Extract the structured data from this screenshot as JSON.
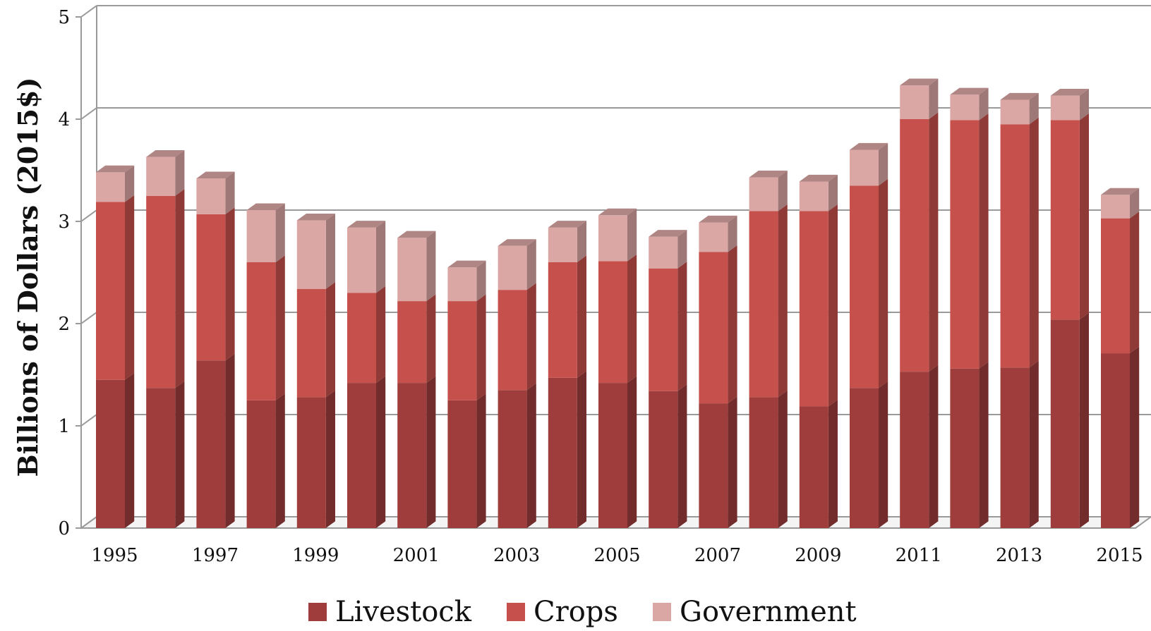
{
  "chart_data": {
    "type": "bar",
    "stacked": true,
    "three_d": true,
    "title": "",
    "xlabel": "",
    "ylabel": "Billions of Dollars (2015$)",
    "ylim": [
      0,
      5
    ],
    "yticks": [
      0,
      1,
      2,
      3,
      4,
      5
    ],
    "grid": true,
    "legend_position": "bottom",
    "categories": [
      "1995",
      "1996",
      "1997",
      "1998",
      "1999",
      "2000",
      "2001",
      "2002",
      "2003",
      "2004",
      "2005",
      "2006",
      "2007",
      "2008",
      "2009",
      "2010",
      "2011",
      "2012",
      "2013",
      "2014",
      "2015"
    ],
    "xtick_labels": [
      "1995",
      "",
      "1997",
      "",
      "1999",
      "",
      "2001",
      "",
      "2003",
      "",
      "2005",
      "",
      "2007",
      "",
      "2009",
      "",
      "2011",
      "",
      "2013",
      "",
      "2015"
    ],
    "series": [
      {
        "name": "Livestock",
        "color": "#9e3d3c",
        "values": [
          1.45,
          1.37,
          1.64,
          1.25,
          1.28,
          1.42,
          1.42,
          1.25,
          1.35,
          1.47,
          1.42,
          1.34,
          1.22,
          1.28,
          1.19,
          1.37,
          1.53,
          1.56,
          1.57,
          2.04,
          1.71
        ]
      },
      {
        "name": "Crops",
        "color": "#c6504c",
        "values": [
          1.74,
          1.88,
          1.43,
          1.35,
          1.06,
          0.88,
          0.8,
          0.97,
          0.98,
          1.13,
          1.19,
          1.2,
          1.48,
          1.82,
          1.91,
          1.98,
          2.47,
          2.43,
          2.38,
          1.95,
          1.32
        ]
      },
      {
        "name": "Government",
        "color": "#dba7a5",
        "values": [
          0.29,
          0.38,
          0.35,
          0.51,
          0.67,
          0.64,
          0.62,
          0.33,
          0.43,
          0.34,
          0.45,
          0.31,
          0.29,
          0.33,
          0.29,
          0.35,
          0.33,
          0.25,
          0.24,
          0.24,
          0.23
        ]
      }
    ]
  }
}
